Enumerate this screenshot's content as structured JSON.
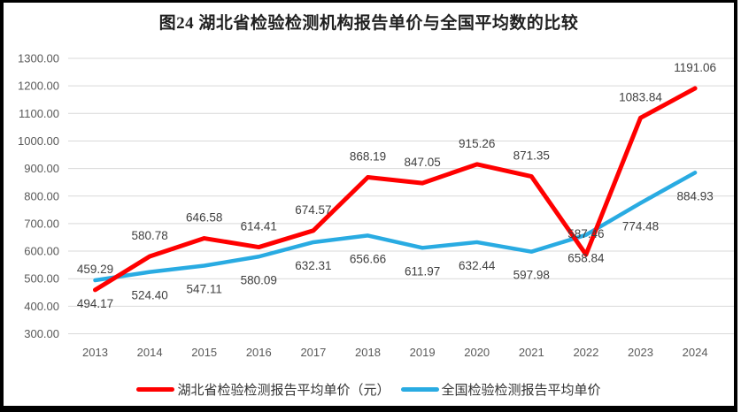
{
  "title": "图24 湖北省检验检测机构报告单价与全国平均数的比较",
  "colors": {
    "hubei_series": "#FF0000",
    "national_series": "#29ABE2",
    "gridline": "#D9D9D9",
    "axis_tick_text": "#595959",
    "data_label_text": "#404040",
    "window_border": "#000000",
    "background": "#FFFFFF"
  },
  "chart_data": {
    "type": "line",
    "title": "图24 湖北省检验检测机构报告单价与全国平均数的比较",
    "categories": [
      "2013",
      "2014",
      "2015",
      "2016",
      "2017",
      "2018",
      "2019",
      "2020",
      "2021",
      "2022",
      "2023",
      "2024"
    ],
    "series": [
      {
        "name": "湖北省检验检测报告平均单价（元）",
        "color": "#FF0000",
        "values": [
          459.29,
          580.78,
          646.58,
          614.41,
          674.57,
          868.19,
          847.05,
          915.26,
          871.35,
          587.46,
          1083.84,
          1191.06
        ],
        "labels": [
          "459.29",
          "580.78",
          "646.58",
          "614.41",
          "674.57",
          "868.19",
          "847.05",
          "915.26",
          "871.35",
          "587.46",
          "1083.84",
          "1191.06"
        ],
        "label_position": "above"
      },
      {
        "name": "全国检验检测报告平均单价",
        "color": "#29ABE2",
        "values": [
          494.17,
          524.4,
          547.11,
          580.09,
          632.31,
          656.66,
          611.97,
          632.44,
          597.98,
          658.84,
          774.48,
          884.93
        ],
        "labels": [
          "494.17",
          "524.40",
          "547.11",
          "580.09",
          "632.31",
          "656.66",
          "611.97",
          "632.44",
          "597.98",
          "658.84",
          "774.48",
          "884.93"
        ],
        "label_position": "below"
      }
    ],
    "yticks": [
      "300.00",
      "400.00",
      "500.00",
      "600.00",
      "700.00",
      "800.00",
      "900.00",
      "1000.00",
      "1100.00",
      "1200.00",
      "1300.00"
    ],
    "ylim": [
      300,
      1300
    ],
    "ytick_step": 100,
    "grid": true,
    "legend_position": "bottom"
  }
}
